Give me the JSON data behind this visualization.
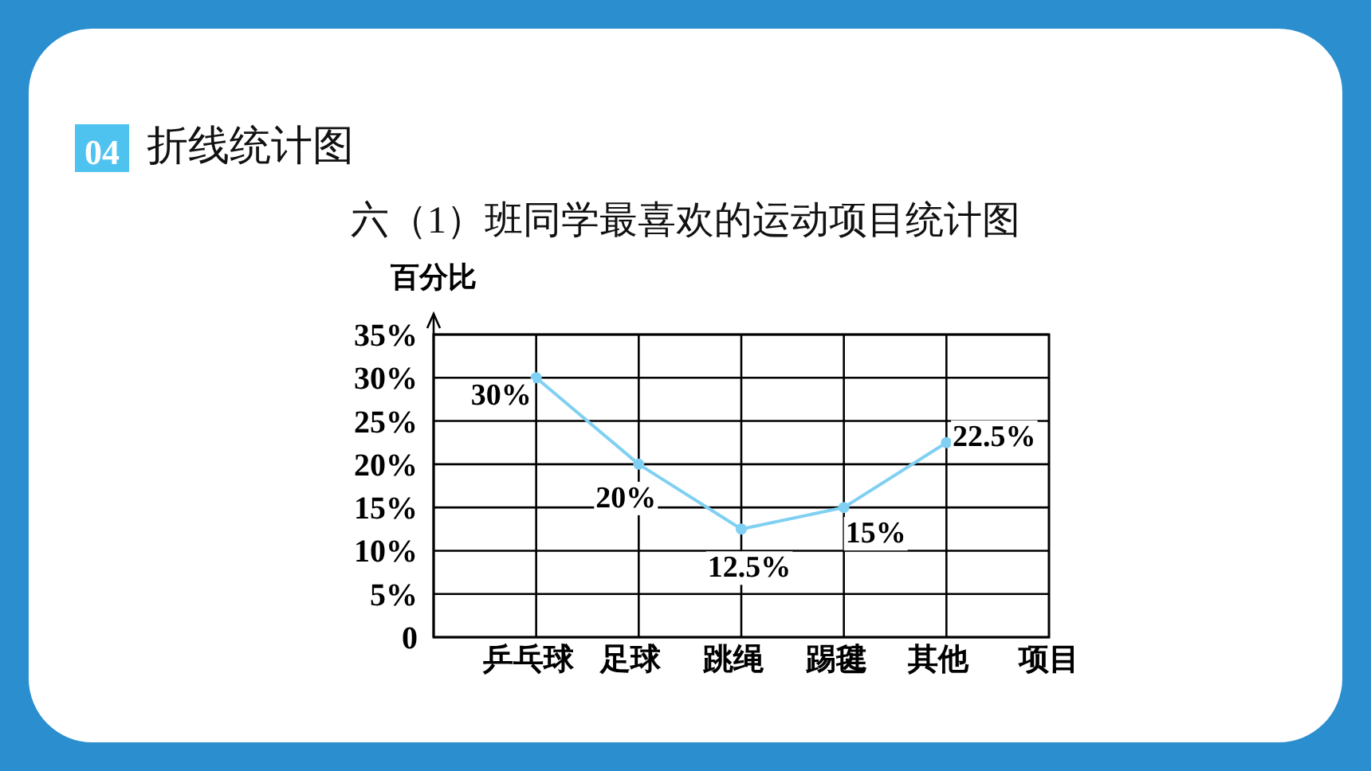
{
  "chart_data": {
    "type": "line",
    "title": "六（1）班同学最喜欢的运动项目统计图",
    "xlabel": "项目",
    "ylabel": "百分比",
    "annotations": [
      "04",
      "折线统计图"
    ],
    "categories": [
      "乒乓球",
      "足球",
      "跳绳",
      "踢毽",
      "其他"
    ],
    "series": [
      {
        "color": "#7fd0f2",
        "values": [
          30,
          20,
          12.5,
          15,
          22.5
        ],
        "value_labels": [
          "30%",
          "20%",
          "12.5%",
          "15%",
          "22.5%"
        ]
      }
    ],
    "ylim": [
      0,
      35
    ],
    "yticks": [
      0,
      {
        "value": 5,
        "label": "5%"
      },
      {
        "value": 10,
        "label": "10%"
      },
      {
        "value": 15,
        "label": "15%"
      },
      {
        "value": 20,
        "label": "20%"
      },
      {
        "value": 25,
        "label": "25%"
      },
      {
        "value": 30,
        "label": "30%"
      },
      {
        "value": 35,
        "label": "35%"
      }
    ],
    "grid": true,
    "marker": "circle"
  }
}
